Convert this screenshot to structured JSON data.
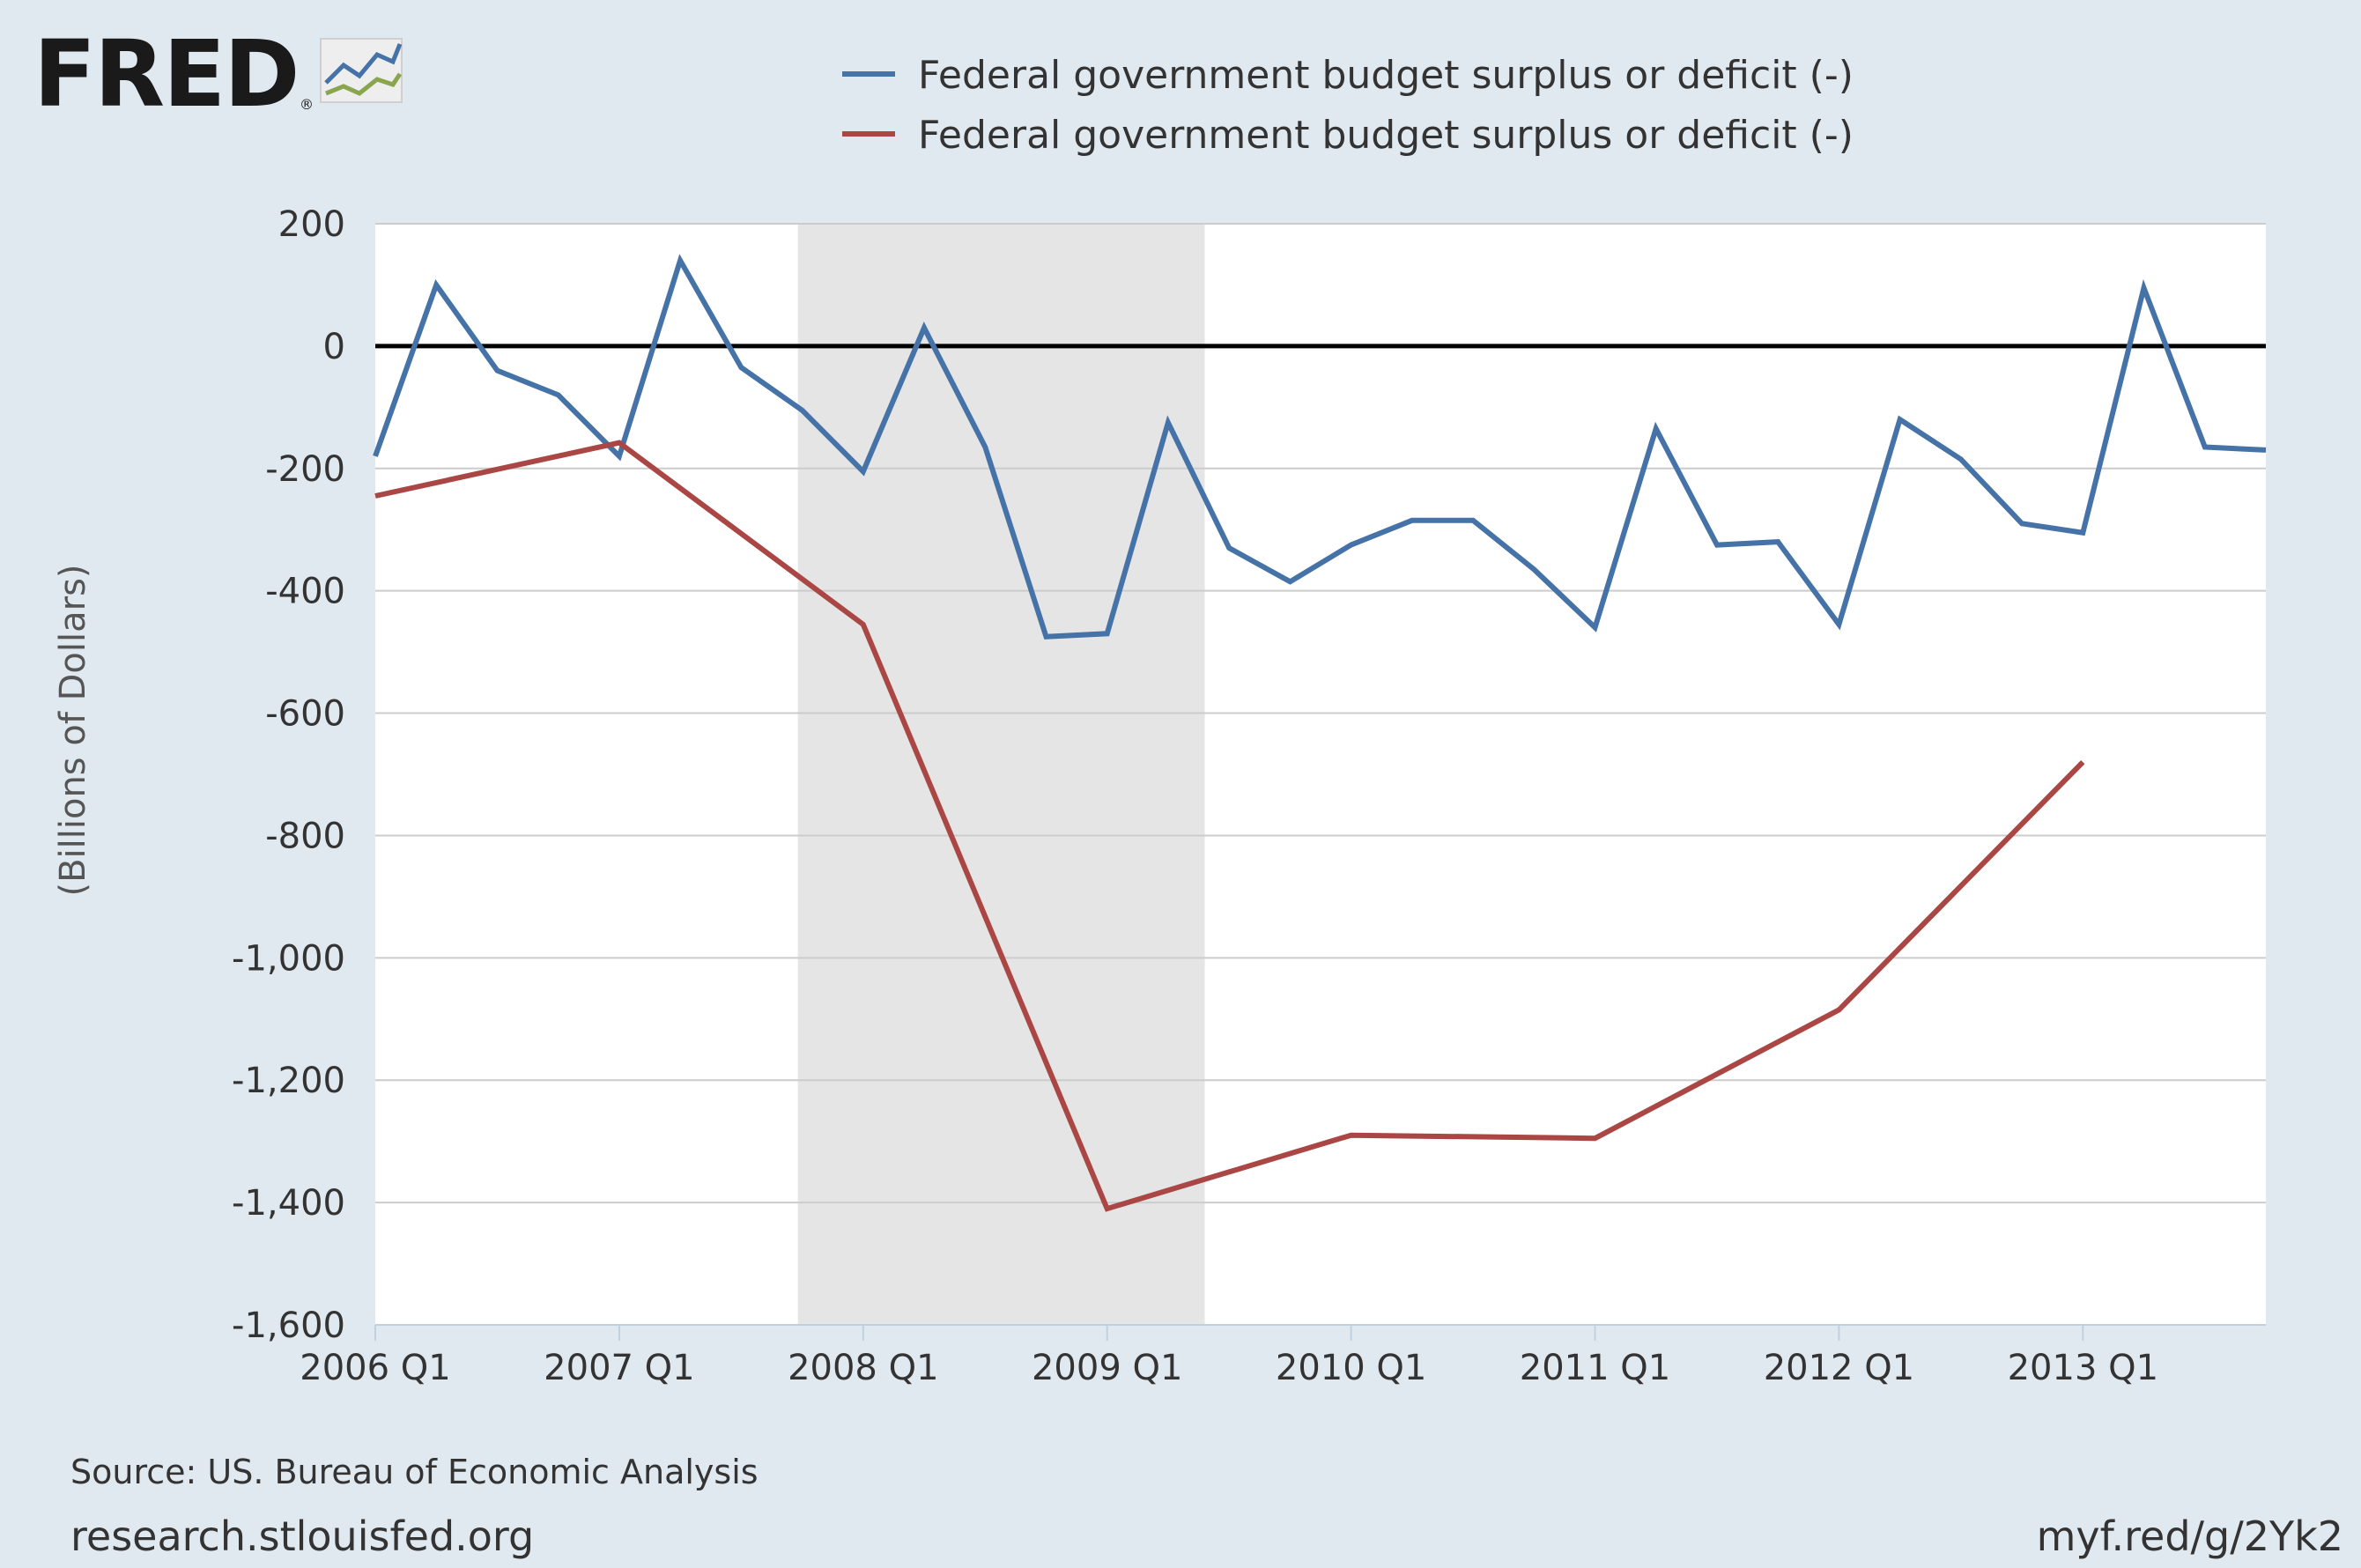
{
  "logo": {
    "text": "FRED",
    "mark": "®",
    "icon": "chart-line-icon"
  },
  "legend": [
    {
      "label": "Federal government budget surplus or deficit (-)",
      "color": "#4572a7"
    },
    {
      "label": "Federal government budget surplus or deficit (-)",
      "color": "#aa4643"
    }
  ],
  "footer": {
    "source": "Source: US. Bureau of Economic Analysis",
    "site": "research.stlouisfed.org",
    "short_link": "myf.red/g/2Yk2"
  },
  "chart_data": {
    "type": "line",
    "title": "",
    "xlabel": "",
    "ylabel": "(Billions of Dollars)",
    "ylim": [
      -1600,
      200
    ],
    "yticks": [
      200,
      0,
      -200,
      -400,
      -600,
      -800,
      -1000,
      -1200,
      -1400,
      -1600
    ],
    "ytick_labels": [
      "200",
      "0",
      "-200",
      "-400",
      "-600",
      "-800",
      "-1,000",
      "-1,200",
      "-1,400",
      "-1,600"
    ],
    "x_range": [
      "2006 Q1",
      "2013 Q4"
    ],
    "xtick_labels": [
      "2006 Q1",
      "2007 Q1",
      "2008 Q1",
      "2009 Q1",
      "2010 Q1",
      "2011 Q1",
      "2012 Q1",
      "2013 Q1"
    ],
    "grid": true,
    "zero_line": true,
    "recession_shading": {
      "start": "2007 Q4",
      "end": "2009 Q2",
      "color": "#e5e5e5"
    },
    "series": [
      {
        "name": "Federal government budget surplus or deficit (-)",
        "color": "#4572a7",
        "x": [
          "2006 Q1",
          "2006 Q2",
          "2006 Q3",
          "2006 Q4",
          "2007 Q1",
          "2007 Q2",
          "2007 Q3",
          "2007 Q4",
          "2008 Q1",
          "2008 Q2",
          "2008 Q3",
          "2008 Q4",
          "2009 Q1",
          "2009 Q2",
          "2009 Q3",
          "2009 Q4",
          "2010 Q1",
          "2010 Q2",
          "2010 Q3",
          "2010 Q4",
          "2011 Q1",
          "2011 Q2",
          "2011 Q3",
          "2011 Q4",
          "2012 Q1",
          "2012 Q2",
          "2012 Q3",
          "2012 Q4",
          "2013 Q1",
          "2013 Q2",
          "2013 Q3",
          "2013 Q4"
        ],
        "values": [
          -180,
          100,
          -40,
          -80,
          -180,
          140,
          -35,
          -105,
          -205,
          30,
          -165,
          -475,
          -470,
          -125,
          -330,
          -385,
          -325,
          -285,
          -285,
          -365,
          -460,
          -135,
          -325,
          -320,
          -455,
          -120,
          -185,
          -290,
          -305,
          95,
          -165,
          -170
        ]
      },
      {
        "name": "Federal government budget surplus or deficit (-)",
        "color": "#aa4643",
        "x": [
          "2006 Q1",
          "2007 Q1",
          "2008 Q1",
          "2009 Q1",
          "2010 Q1",
          "2011 Q1",
          "2012 Q1",
          "2013 Q1"
        ],
        "values": [
          -245,
          -158,
          -455,
          -1410,
          -1290,
          -1295,
          -1085,
          -680
        ]
      }
    ]
  }
}
